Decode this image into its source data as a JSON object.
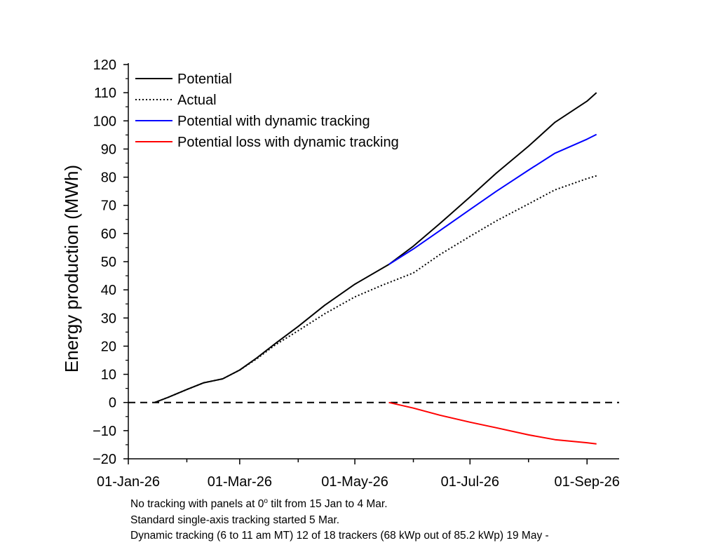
{
  "chart_data": {
    "type": "line",
    "title": "",
    "xlabel": "",
    "ylabel": "Energy production (MWh)",
    "x_ticks": [
      "01-Jan-26",
      "01-Mar-26",
      "01-May-26",
      "01-Jul-26",
      "01-Sep-26"
    ],
    "x_range": [
      "2026-01-01",
      "2026-09-18"
    ],
    "ylim": [
      -20,
      120
    ],
    "y_ticks": [
      -20,
      -10,
      0,
      10,
      20,
      30,
      40,
      50,
      60,
      70,
      80,
      90,
      100,
      110,
      120
    ],
    "grid": false,
    "legend_position": "top-left",
    "reference_line": {
      "y": 0,
      "style": "dashed",
      "color": "#000000"
    },
    "series": [
      {
        "name": "Potential",
        "color": "#000000",
        "style": "solid",
        "points": [
          [
            "2026-01-15",
            0
          ],
          [
            "2026-01-22",
            1.8
          ],
          [
            "2026-02-01",
            4.6
          ],
          [
            "2026-02-10",
            7.0
          ],
          [
            "2026-02-15",
            7.7
          ],
          [
            "2026-02-20",
            8.4
          ],
          [
            "2026-03-01",
            11.5
          ],
          [
            "2026-03-10",
            15.8
          ],
          [
            "2026-03-20",
            21.0
          ],
          [
            "2026-04-01",
            27.0
          ],
          [
            "2026-04-15",
            34.5
          ],
          [
            "2026-05-01",
            42.0
          ],
          [
            "2026-05-19",
            49.0
          ],
          [
            "2026-06-01",
            55.5
          ],
          [
            "2026-06-15",
            63.5
          ],
          [
            "2026-07-01",
            73.0
          ],
          [
            "2026-07-15",
            81.5
          ],
          [
            "2026-08-01",
            91.0
          ],
          [
            "2026-08-15",
            99.5
          ],
          [
            "2026-09-01",
            107.0
          ],
          [
            "2026-09-06",
            110.0
          ]
        ]
      },
      {
        "name": "Actual",
        "color": "#000000",
        "style": "dotted",
        "points": [
          [
            "2026-01-15",
            0
          ],
          [
            "2026-01-22",
            1.8
          ],
          [
            "2026-02-01",
            4.6
          ],
          [
            "2026-02-10",
            7.0
          ],
          [
            "2026-02-15",
            7.7
          ],
          [
            "2026-02-20",
            8.4
          ],
          [
            "2026-03-01",
            11.5
          ],
          [
            "2026-03-10",
            15.5
          ],
          [
            "2026-03-20",
            20.5
          ],
          [
            "2026-04-01",
            25.5
          ],
          [
            "2026-04-15",
            31.5
          ],
          [
            "2026-05-01",
            37.5
          ],
          [
            "2026-05-15",
            41.5
          ],
          [
            "2026-06-01",
            46.0
          ],
          [
            "2026-06-15",
            52.5
          ],
          [
            "2026-07-01",
            59.0
          ],
          [
            "2026-07-15",
            64.5
          ],
          [
            "2026-08-01",
            70.5
          ],
          [
            "2026-08-15",
            75.5
          ],
          [
            "2026-09-01",
            79.5
          ],
          [
            "2026-09-06",
            80.5
          ]
        ]
      },
      {
        "name": "Potential with dynamic tracking",
        "color": "#0000ff",
        "style": "solid",
        "points": [
          [
            "2026-05-19",
            49.0
          ],
          [
            "2026-06-01",
            54.5
          ],
          [
            "2026-06-15",
            61.0
          ],
          [
            "2026-07-01",
            68.5
          ],
          [
            "2026-07-15",
            75.0
          ],
          [
            "2026-08-01",
            82.5
          ],
          [
            "2026-08-15",
            88.5
          ],
          [
            "2026-09-01",
            93.5
          ],
          [
            "2026-09-06",
            95.2
          ]
        ]
      },
      {
        "name": "Potential loss with dynamic tracking",
        "color": "#ff0000",
        "style": "solid",
        "points": [
          [
            "2026-05-19",
            0
          ],
          [
            "2026-06-01",
            -2.0
          ],
          [
            "2026-06-15",
            -4.5
          ],
          [
            "2026-07-01",
            -7.0
          ],
          [
            "2026-07-15",
            -9.0
          ],
          [
            "2026-08-01",
            -11.5
          ],
          [
            "2026-08-15",
            -13.2
          ],
          [
            "2026-09-01",
            -14.3
          ],
          [
            "2026-09-06",
            -14.7
          ]
        ]
      }
    ]
  },
  "notes": {
    "line1_prefix": "No tracking with panels at 0",
    "line1_sup": "o",
    "line1_suffix": " tilt from 15 Jan to 4 Mar.",
    "line2": "Standard single-axis tracking started 5 Mar.",
    "line3": "Dynamic tracking (6 to 11 am MT) 12 of 18 trackers (68 kWp out of 85.2 kWp) 19 May -"
  }
}
